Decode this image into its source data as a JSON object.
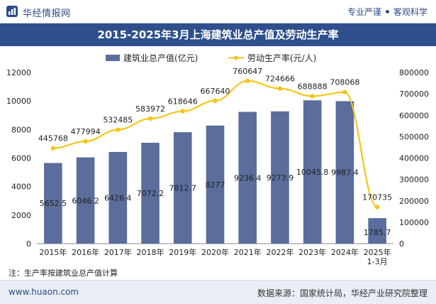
{
  "header": {
    "brand": "华经情报网",
    "slogan_left": "专业严谨",
    "slogan_right": "客观科学"
  },
  "footer": {
    "note": "注：生产率按建筑业总产值计算",
    "website": "www.huaon.com",
    "source": "数据来源：国家统计局，华经产业研究院整理"
  },
  "colors": {
    "bar": "#5a6d9c",
    "line": "#f5c518",
    "title_bg": "#2f4f8c",
    "brand": "#2d4b86"
  },
  "chart_data": {
    "type": "bar",
    "title": "2015-2025年3月上海建筑业总产值及劳动生产率",
    "categories": [
      "2015年",
      "2016年",
      "2017年",
      "2018年",
      "2019年",
      "2020年",
      "2021年",
      "2022年",
      "2023年",
      "2024年",
      "2025年\n1-3月"
    ],
    "series": [
      {
        "name": "建筑业总产值(亿元)",
        "type": "bar",
        "axis": "left",
        "values": [
          5652.5,
          6046.2,
          6426.4,
          7072.2,
          7812.7,
          8277,
          9236.4,
          9273.9,
          10045.8,
          9987.4,
          1785.7
        ],
        "labels": [
          "5652.5",
          "6046.2",
          "6426.4",
          "7072.2",
          "7812.7",
          "8277",
          "9236.4",
          "9273.9",
          "10045.8",
          "9987.4",
          "1785.7"
        ]
      },
      {
        "name": "劳动生产率(元/人)",
        "type": "line",
        "axis": "right",
        "values": [
          445768,
          477994,
          532485,
          583972,
          618646,
          667640,
          760647,
          724666,
          688888,
          708068,
          170735
        ],
        "labels": [
          "445768",
          "477994",
          "532485",
          "583972",
          "618646",
          "667640",
          "760647",
          "724666",
          "688888",
          "708068",
          "170735"
        ]
      }
    ],
    "y_left": {
      "min": 0,
      "max": 12000,
      "ticks": [
        "0",
        "2000",
        "4000",
        "6000",
        "8000",
        "10000",
        "12000"
      ]
    },
    "y_right": {
      "min": 0,
      "max": 800000,
      "ticks": [
        "0",
        "100000",
        "200000",
        "300000",
        "400000",
        "500000",
        "600000",
        "700000",
        "800000"
      ]
    },
    "legend_position": "top",
    "grid": false
  }
}
